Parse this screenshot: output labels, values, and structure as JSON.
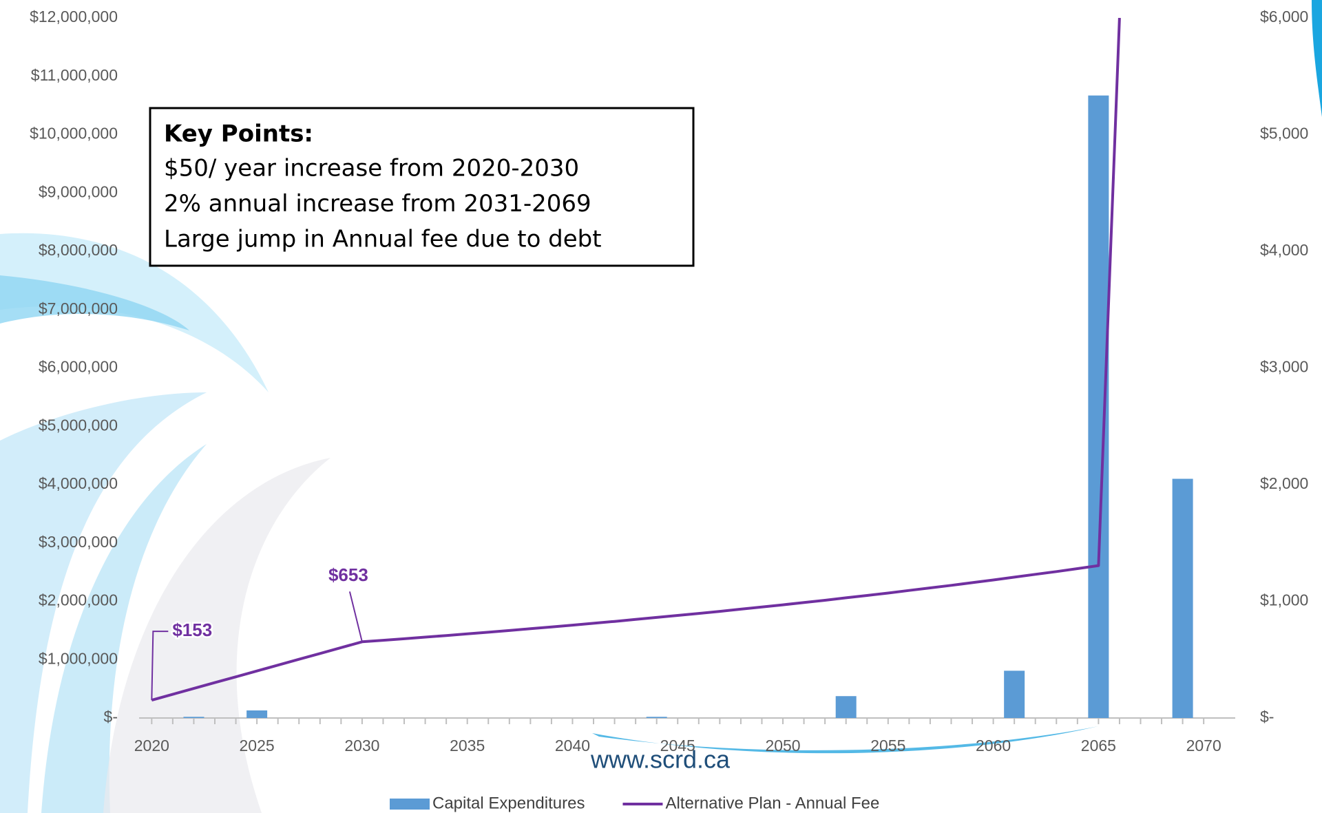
{
  "chart_data": {
    "type": "bar-line",
    "xlim": [
      2019.4,
      2071.5
    ],
    "xticks": [
      2020,
      2025,
      2030,
      2035,
      2040,
      2045,
      2050,
      2055,
      2060,
      2065,
      2070
    ],
    "ylim": [
      0,
      12000000
    ],
    "yticks": [
      {
        "value": 0,
        "label": "$-"
      },
      {
        "value": 1000000,
        "label": "$1,000,000"
      },
      {
        "value": 2000000,
        "label": "$2,000,000"
      },
      {
        "value": 3000000,
        "label": "$3,000,000"
      },
      {
        "value": 4000000,
        "label": "$4,000,000"
      },
      {
        "value": 5000000,
        "label": "$5,000,000"
      },
      {
        "value": 6000000,
        "label": "$6,000,000"
      },
      {
        "value": 7000000,
        "label": "$7,000,000"
      },
      {
        "value": 8000000,
        "label": "$8,000,000"
      },
      {
        "value": 9000000,
        "label": "$9,000,000"
      },
      {
        "value": 10000000,
        "label": "$10,000,000"
      },
      {
        "value": 11000000,
        "label": "$11,000,000"
      },
      {
        "value": 12000000,
        "label": "$12,000,000"
      }
    ],
    "y2lim": [
      0,
      6000
    ],
    "y2ticks": [
      {
        "value": 0,
        "label": "$-"
      },
      {
        "value": 1000,
        "label": "$1,000"
      },
      {
        "value": 2000,
        "label": "$2,000"
      },
      {
        "value": 3000,
        "label": "$3,000"
      },
      {
        "value": 4000,
        "label": "$4,000"
      },
      {
        "value": 5000,
        "label": "$5,000"
      },
      {
        "value": 6000,
        "label": "$6,000"
      }
    ],
    "grid": false,
    "legend": "bottom",
    "series": [
      {
        "name": "Capital Expenditures",
        "type": "bar",
        "color": "#5b9bd5",
        "x": [
          2022,
          2025,
          2044,
          2053,
          2061,
          2065,
          2069
        ],
        "values": [
          20000,
          130000,
          20000,
          375000,
          810000,
          10670000,
          4100000
        ]
      },
      {
        "name": "Alternative Plan - Annual Fee",
        "type": "line",
        "color": "#7030a0",
        "axis": "y2",
        "x": [
          2020,
          2021,
          2022,
          2023,
          2024,
          2025,
          2026,
          2027,
          2028,
          2029,
          2030,
          2031,
          2032,
          2033,
          2034,
          2035,
          2036,
          2037,
          2038,
          2039,
          2040,
          2041,
          2042,
          2043,
          2044,
          2045,
          2046,
          2047,
          2048,
          2049,
          2050,
          2051,
          2052,
          2053,
          2054,
          2055,
          2056,
          2057,
          2058,
          2059,
          2060,
          2061,
          2062,
          2063,
          2064,
          2065,
          2066
        ],
        "values": [
          153,
          203,
          253,
          303,
          353,
          403,
          453,
          503,
          553,
          603,
          653,
          666,
          679,
          693,
          707,
          721,
          735,
          750,
          765,
          780,
          796,
          812,
          828,
          845,
          862,
          879,
          896,
          914,
          933,
          951,
          970,
          990,
          1009,
          1030,
          1050,
          1071,
          1093,
          1115,
          1137,
          1160,
          1183,
          1207,
          1231,
          1255,
          1280,
          1306,
          6000
        ],
        "value_labels": [
          "$153",
          null,
          null,
          null,
          null,
          null,
          null,
          null,
          null,
          null,
          "$653",
          null,
          null,
          null,
          null,
          null,
          null,
          null,
          null,
          null,
          null,
          null,
          null,
          null,
          null,
          null,
          null,
          null,
          null,
          null,
          null,
          null,
          null,
          null,
          null,
          null,
          null,
          null,
          null,
          null,
          null,
          null,
          null,
          null,
          null,
          null,
          null
        ]
      }
    ],
    "annotation": {
      "title": "Key Points:",
      "lines": [
        {
          "text": "$50/ year increase from 2020-2030",
          "color": "#000000"
        },
        {
          "text": "2% annual increase from 2031-2069",
          "color": "#000000"
        },
        {
          "text": "Large jump in Annual fee due to debt",
          "color": "#ff0000"
        }
      ]
    },
    "website": "www.scrd.ca"
  }
}
